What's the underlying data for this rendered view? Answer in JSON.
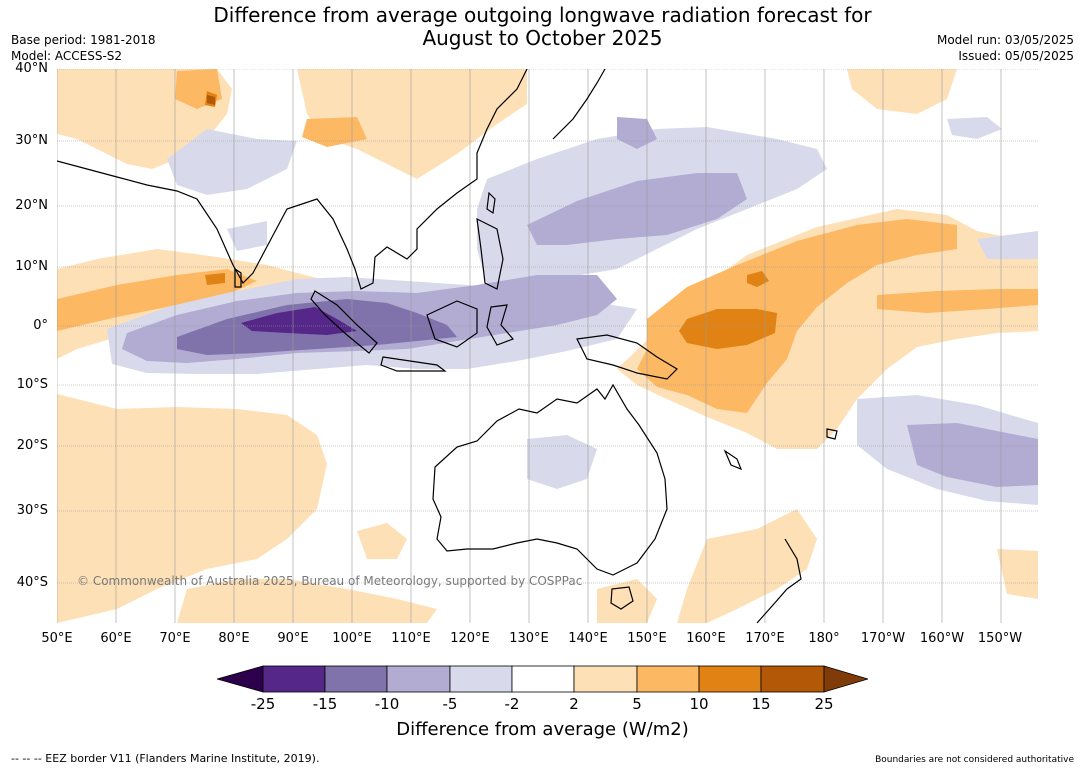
{
  "title": {
    "line1": "Difference from average outgoing longwave radiation forecast for",
    "line2": "August to October 2025"
  },
  "meta_left": {
    "base_period": "Base period: 1981-2018",
    "model": "Model: ACCESS-S2"
  },
  "meta_right": {
    "model_run": "Model run: 03/05/2025",
    "issued": "Issued: 05/05/2025"
  },
  "lat_labels": [
    "40°N",
    "30°N",
    "20°N",
    "10°N",
    "0°",
    "10°S",
    "20°S",
    "30°S",
    "40°S"
  ],
  "lon_labels": [
    "50°E",
    "60°E",
    "70°E",
    "80°E",
    "90°E",
    "100°E",
    "110°E",
    "120°E",
    "130°E",
    "140°E",
    "150°E",
    "160°E",
    "170°E",
    "180°",
    "170°W",
    "160°W",
    "150°W"
  ],
  "copyright": "© Commonwealth of Australia 2025, Bureau of Meteorology, supported by COSPPac",
  "colorbar": {
    "ticks": [
      "-25",
      "-15",
      "-10",
      "-5",
      "-2",
      "2",
      "5",
      "10",
      "15",
      "25"
    ],
    "label": "Difference from average (W/m2)",
    "colors": {
      "below_-25": "#2d004b",
      "-25_-15": "#542788",
      "-15_-10": "#8073ac",
      "-10_-5": "#b2abd2",
      "-5_-2": "#d8daeb",
      "-2_2": "#ffffff",
      "2_5": "#fee0b6",
      "5_10": "#fdb863",
      "10_15": "#e08214",
      "15_25": "#b35806",
      "above_25": "#7f3b08"
    }
  },
  "footer": {
    "left": "--  --  -- EEZ border V11 (Flanders Marine Institute, 2019).",
    "right": "Boundaries are not considered authoritative"
  }
}
